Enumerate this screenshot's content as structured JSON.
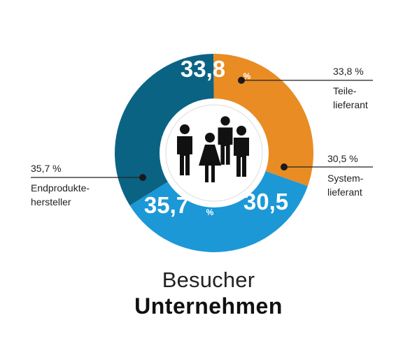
{
  "chart_data": {
    "type": "pie",
    "style": "donut",
    "slices": [
      {
        "label": "Teile-\nlieferant",
        "value": 33.8,
        "display": "33,8",
        "callout": "33,8 %",
        "color": "#0b6384"
      },
      {
        "label": "System-\nlieferant",
        "value": 30.5,
        "display": "30,5",
        "callout": "30,5 %",
        "color": "#e98c24"
      },
      {
        "label": "Endprodukte-\nhersteller",
        "value": 35.7,
        "display": "35,7",
        "callout": "35,7 %",
        "color": "#1c98d7"
      }
    ],
    "unit": "%",
    "title": "Besucher",
    "subtitle": "Unternehmen",
    "center_icon": "people-group-icon"
  },
  "colors": {
    "ring": "#ffffff",
    "center": "#ffffff",
    "icon": "#111111",
    "callout_line": "#222222"
  }
}
